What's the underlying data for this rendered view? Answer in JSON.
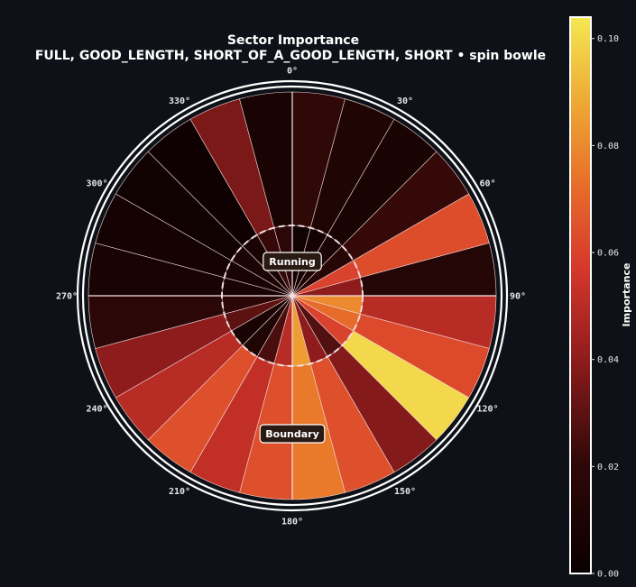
{
  "chart_data": {
    "type": "polar-sector-heatmap",
    "title": "Sector Importance",
    "subtitle": "FULL, GOOD_LENGTH, SHORT_OF_A_GOOD_LENGTH, SHORT • spin bowle",
    "angle_ticks": [
      "0°",
      "30°",
      "60°",
      "90°",
      "120°",
      "150°",
      "180°",
      "210°",
      "240°",
      "270°",
      "300°",
      "330°"
    ],
    "zones": [
      "Running",
      "Boundary"
    ],
    "sector_width_deg": 15,
    "sectors": [
      {
        "angle_start": 0,
        "running": 0.004,
        "boundary": 0.02
      },
      {
        "angle_start": 15,
        "running": 0.006,
        "boundary": 0.012
      },
      {
        "angle_start": 30,
        "running": 0.01,
        "boundary": 0.008
      },
      {
        "angle_start": 45,
        "running": 0.016,
        "boundary": 0.022
      },
      {
        "angle_start": 60,
        "running": 0.06,
        "boundary": 0.063
      },
      {
        "angle_start": 75,
        "running": 0.04,
        "boundary": 0.015
      },
      {
        "angle_start": 90,
        "running": 0.08,
        "boundary": 0.05
      },
      {
        "angle_start": 105,
        "running": 0.072,
        "boundary": 0.062
      },
      {
        "angle_start": 120,
        "running": 0.06,
        "boundary": 0.1
      },
      {
        "angle_start": 135,
        "running": 0.028,
        "boundary": 0.038
      },
      {
        "angle_start": 150,
        "running": 0.04,
        "boundary": 0.064
      },
      {
        "angle_start": 165,
        "running": 0.085,
        "boundary": 0.076
      },
      {
        "angle_start": 180,
        "running": 0.05,
        "boundary": 0.064
      },
      {
        "angle_start": 195,
        "running": 0.026,
        "boundary": 0.052
      },
      {
        "angle_start": 210,
        "running": 0.012,
        "boundary": 0.064
      },
      {
        "angle_start": 225,
        "running": 0.008,
        "boundary": 0.05
      },
      {
        "angle_start": 240,
        "running": 0.03,
        "boundary": 0.04
      },
      {
        "angle_start": 255,
        "running": 0.018,
        "boundary": 0.018
      },
      {
        "angle_start": 270,
        "running": 0.008,
        "boundary": 0.008
      },
      {
        "angle_start": 285,
        "running": 0.008,
        "boundary": 0.006
      },
      {
        "angle_start": 300,
        "running": 0.01,
        "boundary": 0.004
      },
      {
        "angle_start": 315,
        "running": 0.008,
        "boundary": 0.003
      },
      {
        "angle_start": 330,
        "running": 0.022,
        "boundary": 0.036
      },
      {
        "angle_start": 345,
        "running": 0.018,
        "boundary": 0.008
      }
    ],
    "colorbar": {
      "label": "Importance",
      "min": 0.0,
      "max": 0.104,
      "ticks": [
        "0.00",
        "0.02",
        "0.04",
        "0.06",
        "0.08",
        "0.10"
      ],
      "tick_values": [
        0.0,
        0.02,
        0.04,
        0.06,
        0.08,
        0.1
      ],
      "colormap": "hot"
    }
  },
  "colors": {
    "background": "#0e1117",
    "grid": "#f2d8d8",
    "ring": "#ffffff",
    "zone_label_bg": "#2a1a14"
  }
}
